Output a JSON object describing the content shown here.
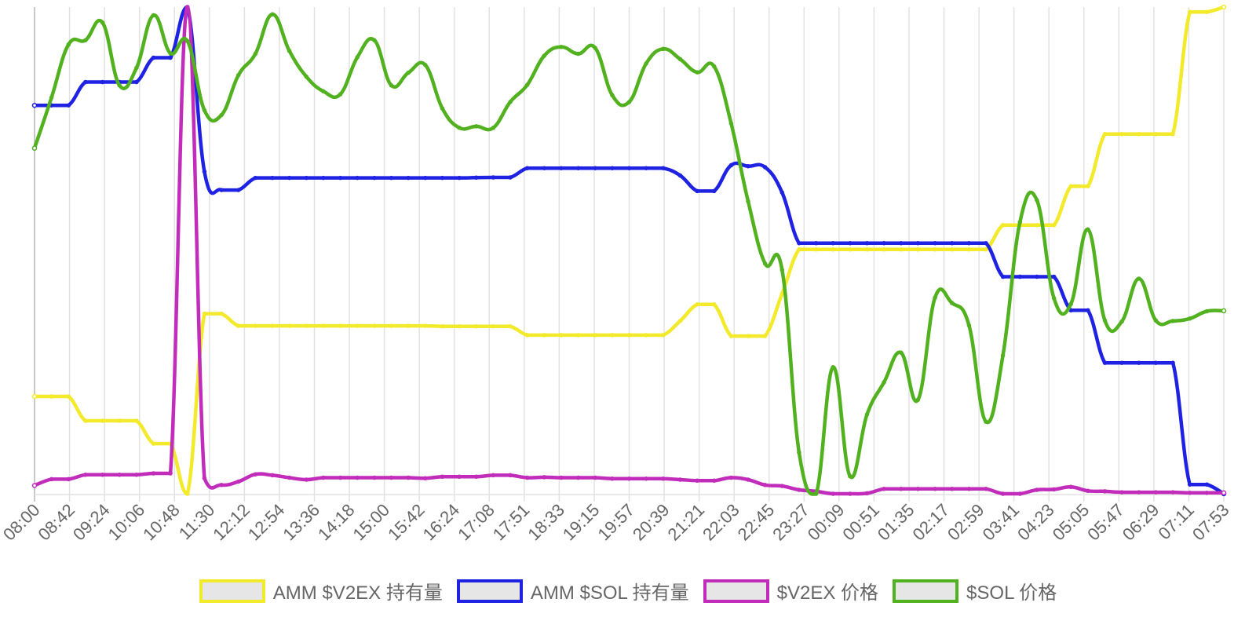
{
  "chart_data": {
    "type": "line",
    "title": "",
    "xlabel": "",
    "ylabel": "",
    "grid": {
      "vertical": true,
      "horizontal": false
    },
    "y_axis_visible": false,
    "legend_position": "bottom",
    "x_tick_labels": [
      "08:00",
      "08:42",
      "09:24",
      "10:06",
      "10:48",
      "11:30",
      "12:12",
      "12:54",
      "13:36",
      "14:18",
      "15:00",
      "15:42",
      "16:24",
      "17:08",
      "17:51",
      "18:33",
      "19:15",
      "19:57",
      "20:39",
      "21:21",
      "22:03",
      "22:45",
      "23:27",
      "00:09",
      "00:51",
      "01:35",
      "02:17",
      "02:59",
      "03:41",
      "04:23",
      "05:05",
      "05:47",
      "06:29",
      "07:11",
      "07:53"
    ],
    "x": [
      0,
      1,
      2,
      3,
      4,
      5,
      6,
      7,
      8,
      9,
      10,
      11,
      12,
      13,
      14,
      15,
      16,
      17,
      18,
      19,
      20,
      21,
      22,
      23,
      24,
      25,
      26,
      27,
      28,
      29,
      30,
      31,
      32,
      33,
      34,
      35,
      36,
      37,
      38,
      39,
      40,
      41,
      42,
      43,
      44,
      45,
      46,
      47,
      48,
      49,
      50,
      51,
      52,
      53,
      54,
      55,
      56,
      57,
      58,
      59,
      60,
      61,
      62,
      63,
      64,
      65,
      66,
      67,
      68,
      69,
      70
    ],
    "ylim": [
      0,
      100
    ],
    "series": [
      {
        "name": "AMM $V2EX 持有量",
        "color": "#f2ea2a",
        "values": [
          20,
          20,
          20,
          15,
          15,
          15,
          15,
          10.3,
          10.3,
          0,
          37,
          37,
          34.5,
          34.5,
          34.5,
          34.5,
          34.5,
          34.5,
          34.5,
          34.5,
          34.5,
          34.5,
          34.5,
          34.5,
          34.4,
          34.4,
          34.4,
          34.4,
          34.4,
          32.6,
          32.6,
          32.6,
          32.6,
          32.6,
          32.6,
          32.6,
          32.6,
          32.6,
          35.5,
          38.9,
          38.9,
          32.4,
          32.4,
          32.4,
          41.1,
          50.2,
          50.2,
          50.2,
          50.2,
          50.2,
          50.2,
          50.2,
          50.2,
          50.2,
          50.2,
          50.2,
          50.2,
          55.2,
          55.2,
          55.2,
          55.2,
          63.2,
          63.2,
          73.9,
          73.9,
          73.9,
          73.9,
          73.9,
          99.0,
          99.0,
          100
        ]
      },
      {
        "name": "AMM $SOL 持有量",
        "color": "#1f22e3",
        "values": [
          79.8,
          79.8,
          79.8,
          84.6,
          84.6,
          84.6,
          84.6,
          89.6,
          89.6,
          100,
          66.2,
          62.4,
          62.4,
          64.9,
          64.9,
          64.9,
          64.9,
          64.9,
          64.9,
          64.9,
          64.9,
          64.9,
          64.9,
          64.9,
          64.9,
          64.9,
          64.95,
          65,
          65,
          66.9,
          66.9,
          66.9,
          66.9,
          66.9,
          66.9,
          66.9,
          66.9,
          66.9,
          65.4,
          62.2,
          62.2,
          67.5,
          67.3,
          67.1,
          61.9,
          51.5,
          51.5,
          51.5,
          51.5,
          51.5,
          51.5,
          51.5,
          51.5,
          51.5,
          51.5,
          51.5,
          51.5,
          44.6,
          44.6,
          44.6,
          44.6,
          37.7,
          37.7,
          26.9,
          26.9,
          26.9,
          26.9,
          26.9,
          1.9,
          1.9,
          0
        ]
      },
      {
        "name": "$V2EX 价格",
        "color": "#c12cba",
        "values": [
          1.7,
          3,
          3,
          3.9,
          3.9,
          3.9,
          3.9,
          4.2,
          4.2,
          100,
          3.2,
          1.8,
          2.5,
          4,
          3.8,
          3.3,
          2.9,
          3.3,
          3.3,
          3.3,
          3.3,
          3.3,
          3.3,
          3.2,
          3.5,
          3.5,
          3.5,
          3.8,
          3.8,
          3.3,
          3.4,
          3.3,
          3.3,
          3.3,
          3.1,
          3.1,
          3.1,
          3.1,
          2.9,
          2.7,
          2.7,
          3.3,
          2.9,
          1.8,
          1.6,
          0.8,
          0.5,
          0,
          0,
          0.1,
          1,
          1,
          1,
          1,
          1,
          1,
          1,
          0,
          0,
          0.8,
          0.9,
          1.4,
          0.6,
          0.5,
          0.3,
          0.3,
          0.3,
          0.3,
          0.2,
          0.2,
          0.2
        ]
      },
      {
        "name": "$SOL 价格",
        "color": "#52b11f",
        "values": [
          71,
          81.4,
          92.3,
          93.2,
          96.8,
          83.9,
          87.5,
          98.3,
          90.5,
          93,
          78.8,
          77.8,
          86,
          90.4,
          98.5,
          91,
          85.7,
          82.7,
          82.1,
          89.7,
          93.2,
          83.9,
          86.5,
          88.1,
          79.2,
          75.2,
          75.5,
          75.2,
          80.5,
          84,
          90,
          91.8,
          90.4,
          91.6,
          81.9,
          80.5,
          88.4,
          91.4,
          89.3,
          86.6,
          87.8,
          76.1,
          60.1,
          47.3,
          46,
          8.5,
          0,
          26,
          3.6,
          16.3,
          22.9,
          29,
          19.3,
          40.3,
          39.2,
          34.6,
          14.8,
          28.4,
          55.8,
          60.3,
          40.2,
          39,
          54.3,
          35.6,
          35.4,
          44.2,
          35.6,
          35.5,
          36,
          37.5,
          37.6
        ]
      }
    ]
  },
  "legend": {
    "items": [
      {
        "label": "AMM $V2EX 持有量",
        "color": "#f2ea2a"
      },
      {
        "label": "AMM $SOL 持有量",
        "color": "#1f22e3"
      },
      {
        "label": "$V2EX 价格",
        "color": "#c12cba"
      },
      {
        "label": "$SOL 价格",
        "color": "#52b11f"
      }
    ]
  }
}
